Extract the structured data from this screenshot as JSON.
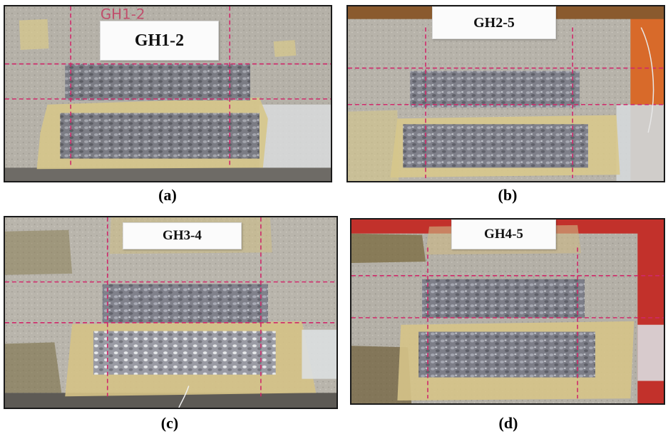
{
  "panels": [
    {
      "id": "a",
      "specimen_label": "GH1-2",
      "caption": "(a)",
      "handwritten_label": "GH1-2"
    },
    {
      "id": "b",
      "specimen_label": "GH2-5",
      "caption": "(b)"
    },
    {
      "id": "c",
      "specimen_label": "GH3-4",
      "caption": "(c)"
    },
    {
      "id": "d",
      "specimen_label": "GH4-5",
      "caption": "(d)"
    }
  ],
  "colors": {
    "concrete": "#b3afa6",
    "epoxy_bond": "#d9c98a",
    "grid_marks": "#d0286a",
    "exposed_aggregate": "#7f8088",
    "background_red": "#c2312b"
  }
}
